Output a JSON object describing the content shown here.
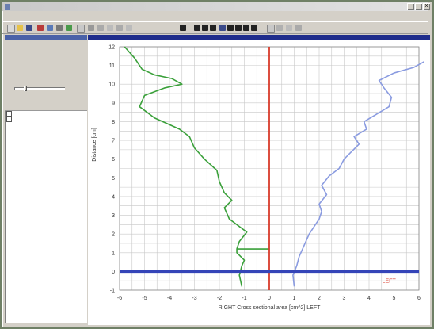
{
  "window": {
    "title": "",
    "min_label": "",
    "max_label": "",
    "close_label": "x"
  },
  "menu": [
    {
      "id": "menu-item-1",
      "label": ""
    },
    {
      "id": "menu-item-2",
      "label": ""
    },
    {
      "id": "menu-item-3",
      "label": ""
    },
    {
      "id": "menu-item-4",
      "label": ""
    },
    {
      "id": "menu-item-5",
      "label": ""
    },
    {
      "id": "menu-item-6",
      "label": ""
    },
    {
      "id": "menu-item-7",
      "label": ""
    },
    {
      "id": "menu-item-8",
      "label": ""
    }
  ],
  "readout": {
    "header": [
      "",
      "",
      ""
    ],
    "rows": [
      {
        "label": "",
        "vals": [
          "",
          "",
          ""
        ]
      },
      {
        "label": "",
        "vals": [
          "",
          "",
          ""
        ]
      },
      {
        "label": "",
        "vals": [
          "",
          "",
          ""
        ]
      }
    ],
    "section": "",
    "rows2": [
      {
        "label": "",
        "vals": [
          "",
          ""
        ]
      },
      {
        "label": "",
        "vals": [
          "",
          ""
        ]
      }
    ],
    "slider_label": "",
    "slider_level": 0.2
  },
  "file_list": {
    "headers": [
      "",
      ""
    ],
    "items": [
      {
        "name": "",
        "col2": ""
      },
      {
        "name": "",
        "col2": ""
      }
    ]
  },
  "plot": {
    "caption": "",
    "watermark": "",
    "left_marker": "LEFT"
  },
  "status": "",
  "colors": {
    "right_curve": "#3aa03a",
    "left_curve": "#8a9be0",
    "center_line": "#d83a2a",
    "zero_line": "#3545b8",
    "grid": "#c8c8c8"
  },
  "chart_data": {
    "type": "line",
    "xlabel": "RIGHT      Cross sectional area [cm^2]      LEFT",
    "ylabel": "Distance [cm]",
    "xlim": [
      -6,
      6
    ],
    "ylim": [
      -1,
      12
    ],
    "x_ticks": [
      -6,
      -5,
      -4,
      -3,
      -2,
      -1,
      0,
      1,
      2,
      3,
      4,
      5,
      6
    ],
    "y_ticks": [
      -1,
      0,
      1,
      2,
      3,
      4,
      5,
      6,
      7,
      8,
      9,
      10,
      11,
      12
    ],
    "x_tick_labels": [
      "-6",
      "-5",
      "-4",
      "-3",
      "-2",
      "-1",
      "0",
      "1",
      "2",
      "3",
      "4",
      "5",
      "6"
    ],
    "y_tick_labels": [
      "-1",
      "0",
      "1",
      "2",
      "3",
      "4",
      "5",
      "6",
      "7",
      "8",
      "9",
      "10",
      "11",
      "12"
    ],
    "grid": true,
    "center_line_x": 0,
    "zero_line_y": 0,
    "series": [
      {
        "side": "right",
        "points": [
          [
            -1.1,
            -0.8
          ],
          [
            -1.2,
            -0.2
          ],
          [
            -1.1,
            0.3
          ],
          [
            -1.0,
            0.6
          ],
          [
            -1.3,
            1.0
          ],
          [
            -1.3,
            1.2
          ],
          [
            0,
            1.2
          ],
          [
            -1.3,
            1.2
          ],
          [
            -1.2,
            1.6
          ],
          [
            -0.9,
            2.1
          ],
          [
            -1.3,
            2.5
          ],
          [
            -1.6,
            2.8
          ],
          [
            -1.8,
            3.4
          ],
          [
            -1.5,
            3.8
          ],
          [
            -1.8,
            4.2
          ],
          [
            -2.0,
            4.8
          ],
          [
            -2.1,
            5.4
          ],
          [
            -2.6,
            6.0
          ],
          [
            -3.0,
            6.6
          ],
          [
            -3.2,
            7.2
          ],
          [
            -3.6,
            7.6
          ],
          [
            -4.6,
            8.2
          ],
          [
            -5.2,
            8.8
          ],
          [
            -5.0,
            9.4
          ],
          [
            -4.2,
            9.8
          ],
          [
            -3.5,
            10.0
          ],
          [
            -3.9,
            10.3
          ],
          [
            -4.6,
            10.5
          ],
          [
            -5.1,
            10.8
          ],
          [
            -5.4,
            11.4
          ],
          [
            -5.8,
            12.0
          ]
        ]
      },
      {
        "side": "left",
        "points": [
          [
            1.0,
            -0.8
          ],
          [
            0.95,
            -0.2
          ],
          [
            1.1,
            0.3
          ],
          [
            1.2,
            0.8
          ],
          [
            1.4,
            1.4
          ],
          [
            1.6,
            2.0
          ],
          [
            1.8,
            2.4
          ],
          [
            2.0,
            2.8
          ],
          [
            2.1,
            3.2
          ],
          [
            2.0,
            3.6
          ],
          [
            2.3,
            4.1
          ],
          [
            2.1,
            4.6
          ],
          [
            2.4,
            5.1
          ],
          [
            2.8,
            5.5
          ],
          [
            3.0,
            6.0
          ],
          [
            3.3,
            6.4
          ],
          [
            3.6,
            6.8
          ],
          [
            3.4,
            7.2
          ],
          [
            3.9,
            7.6
          ],
          [
            3.8,
            8.0
          ],
          [
            4.3,
            8.4
          ],
          [
            4.8,
            8.8
          ],
          [
            4.9,
            9.3
          ],
          [
            4.6,
            9.8
          ],
          [
            4.4,
            10.2
          ],
          [
            5.0,
            10.6
          ],
          [
            5.8,
            10.9
          ],
          [
            6.3,
            11.2
          ]
        ]
      }
    ]
  }
}
